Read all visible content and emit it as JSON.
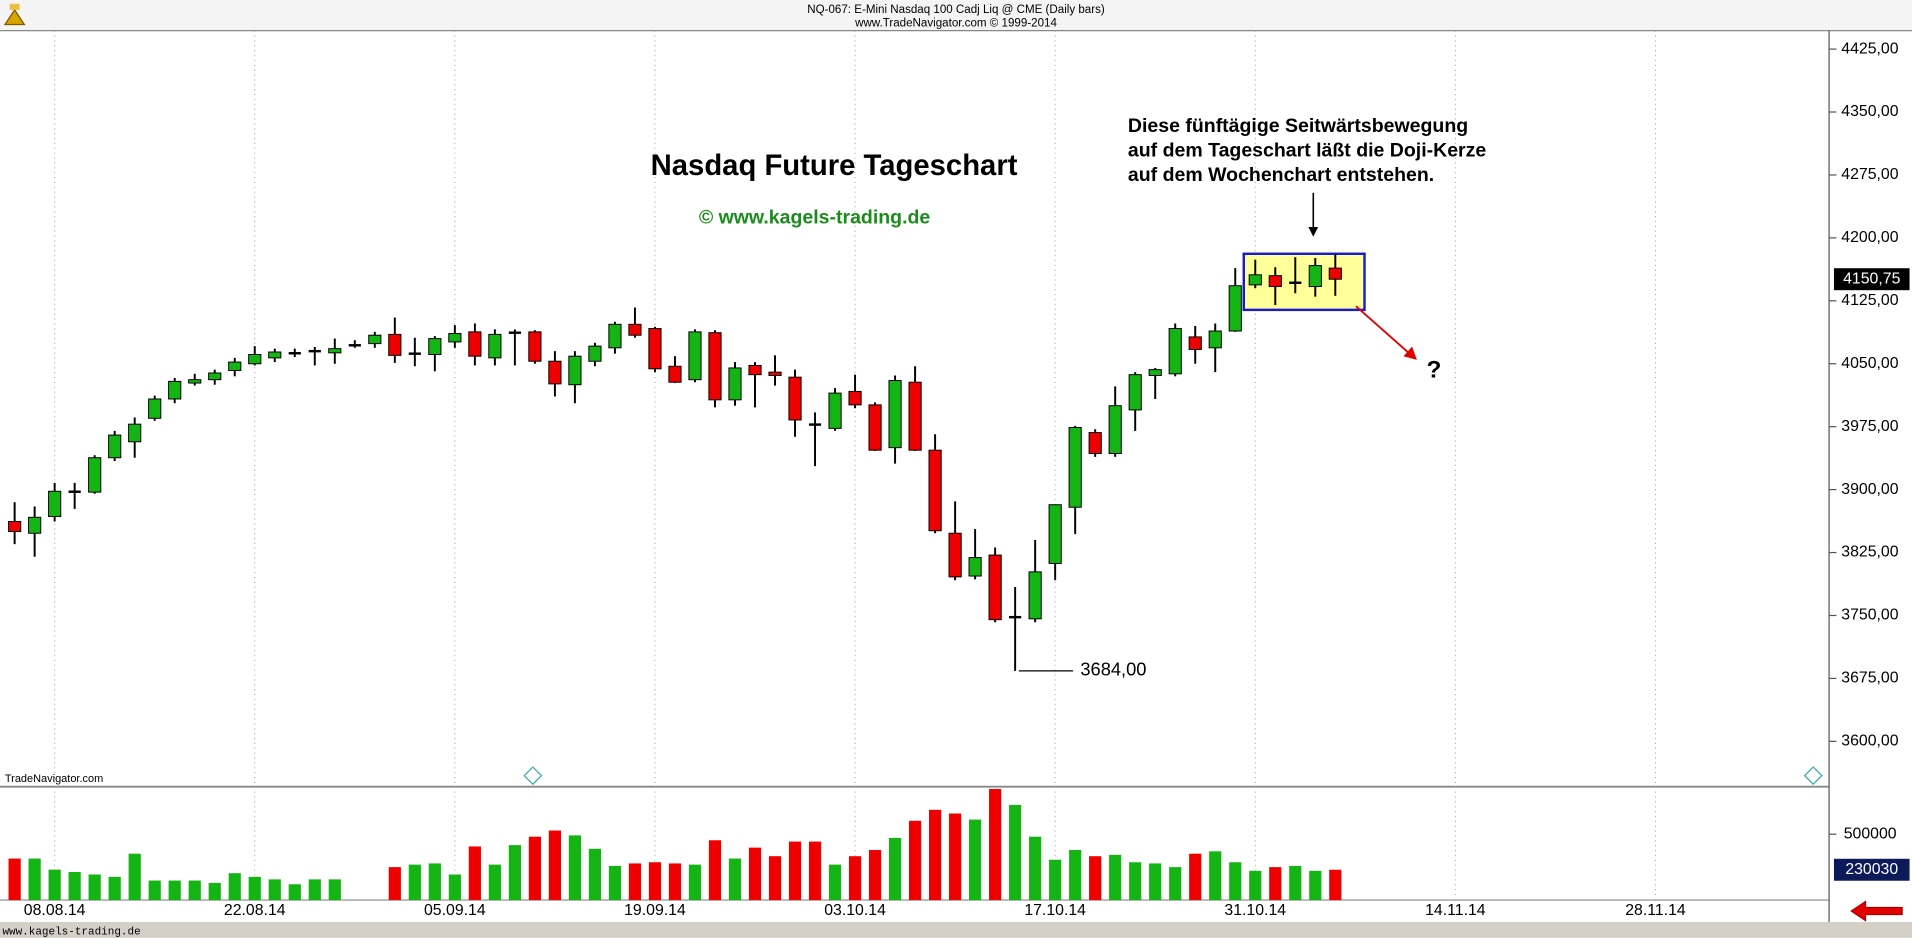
{
  "header": {
    "line1": "NQ-067:  E-Mini Nasdaq 100 Cadj Liq @ CME  (Daily bars)",
    "line2": "www.TradeNavigator.com © 1999-2014"
  },
  "footer": {
    "left": "TradeNavigator.com",
    "bottom": "www.kagels-trading.de"
  },
  "chart_data": {
    "type": "candlestick",
    "title": "Nasdaq Future Tageschart",
    "subtitle": "© www.kagels-trading.de",
    "annotation": [
      "Diese fünftägige Seitwärtsbewegung",
      "auf dem Tageschart läßt die Doji-Kerze",
      "auf dem Wochenchart entstehen."
    ],
    "question": "?",
    "low_label": {
      "value": 3684,
      "label": "3684,00"
    },
    "last_price": {
      "value": 4150.75,
      "label": "4150,75"
    },
    "categories": [
      null,
      null,
      "08.08.14",
      null,
      null,
      null,
      null,
      null,
      null,
      null,
      null,
      null,
      "22.08.14",
      null,
      null,
      null,
      null,
      null,
      null,
      null,
      null,
      null,
      "05.09.14",
      null,
      null,
      null,
      null,
      null,
      null,
      null,
      null,
      null,
      "19.09.14",
      null,
      null,
      null,
      null,
      null,
      null,
      null,
      null,
      null,
      "03.10.14",
      null,
      null,
      null,
      null,
      null,
      null,
      null,
      null,
      null,
      "17.10.14",
      null,
      null,
      null,
      null,
      null,
      null,
      null,
      null,
      null,
      "31.10.14",
      null,
      null,
      null,
      null,
      null,
      null,
      null,
      null,
      null,
      "14.11.14",
      null,
      null,
      null,
      null,
      null,
      null,
      null,
      null,
      null,
      "28.11.14",
      null,
      null,
      null,
      null,
      null,
      null,
      null,
      null
    ],
    "open": [
      3862,
      3848,
      3868,
      3897,
      3897,
      3938,
      3957,
      3985,
      4008,
      4027,
      4031,
      4042,
      4050,
      4057,
      4062,
      4064,
      4063,
      4071,
      4074,
      4085,
      4061,
      4061,
      4076,
      4088,
      4057,
      4086,
      4088,
      4053,
      4025,
      4053,
      4069,
      4097,
      4092,
      4047,
      4031,
      4087,
      4007,
      4048,
      4040,
      4034,
      3978,
      3973,
      4017,
      4001,
      3950,
      4028,
      3947,
      3848,
      3797,
      3822,
      3748,
      3746,
      3812,
      3879,
      3968,
      3943,
      3995,
      4036,
      4038,
      4082,
      4069,
      4089,
      4144,
      4155,
      4146,
      4142,
      4164,
      null,
      null,
      null,
      null,
      null,
      null,
      null,
      null,
      null,
      null,
      null,
      null,
      null,
      null,
      null,
      null,
      null,
      null,
      null,
      null,
      null,
      null,
      null,
      null
    ],
    "high": [
      3885,
      3880,
      3908,
      3908,
      3941,
      3970,
      3986,
      4012,
      4033,
      4038,
      4043,
      4057,
      4071,
      4068,
      4068,
      4070,
      4080,
      4078,
      4088,
      4105,
      4081,
      4083,
      4096,
      4098,
      4091,
      4091,
      4090,
      4065,
      4065,
      4075,
      4100,
      4117,
      4094,
      4059,
      4091,
      4090,
      4052,
      4052,
      4060,
      4043,
      3992,
      4021,
      4037,
      4004,
      4036,
      4047,
      3966,
      3886,
      3853,
      3831,
      3784,
      3840,
      3882,
      3976,
      3972,
      4023,
      4040,
      4045,
      4098,
      4095,
      4098,
      4164,
      4174,
      4165,
      4177,
      4176,
      4180,
      null,
      null,
      null,
      null,
      null,
      null,
      null,
      null,
      null,
      null,
      null,
      null,
      null,
      null,
      null,
      null,
      null,
      null,
      null,
      null,
      null,
      null,
      null,
      null
    ],
    "low": [
      3835,
      3820,
      3862,
      3877,
      3895,
      3934,
      3938,
      3982,
      4003,
      4024,
      4025,
      4035,
      4048,
      4052,
      4058,
      4048,
      4050,
      4069,
      4069,
      4051,
      4047,
      4041,
      4069,
      4048,
      4048,
      4048,
      4050,
      4011,
      4003,
      4047,
      4062,
      4081,
      4040,
      4027,
      4028,
      3998,
      4000,
      3998,
      4024,
      3963,
      3928,
      3970,
      3997,
      3946,
      3931,
      3946,
      3848,
      3792,
      3793,
      3742,
      3684,
      3742,
      3792,
      3847,
      3939,
      3939,
      3970,
      4008,
      4035,
      4050,
      4040,
      4088,
      4140,
      4120,
      4134,
      4130,
      4131,
      null,
      null,
      null,
      null,
      null,
      null,
      null,
      null,
      null,
      null,
      null,
      null,
      null,
      null,
      null,
      null,
      null,
      null,
      null,
      null,
      null,
      null,
      null,
      null
    ],
    "close": [
      3850,
      3867,
      3898,
      3898,
      3938,
      3965,
      3978,
      4008,
      4029,
      4031,
      4039,
      4052,
      4061,
      4064,
      4063,
      4066,
      4068,
      4073,
      4084,
      4060,
      4063,
      4080,
      4086,
      4059,
      4085,
      4088,
      4053,
      4026,
      4059,
      4071,
      4097,
      4084,
      4044,
      4028,
      4088,
      4007,
      4045,
      4037,
      4036,
      3983,
      3977,
      4015,
      4001,
      3947,
      4030,
      3947,
      3851,
      3796,
      3819,
      3745,
      3748,
      3802,
      3882,
      3974,
      3943,
      4000,
      4037,
      4043,
      4092,
      4067,
      4089,
      4143,
      4156,
      4142,
      4147,
      4167,
      4150.75,
      null,
      null,
      null,
      null,
      null,
      null,
      null,
      null,
      null,
      null,
      null,
      null,
      null,
      null,
      null,
      null,
      null,
      null,
      null,
      null,
      null,
      null,
      null,
      null
    ],
    "volume": [
      315000,
      315000,
      231000,
      213000,
      194000,
      176000,
      352000,
      148000,
      148000,
      148000,
      130000,
      204000,
      176000,
      157000,
      120000,
      157000,
      157000,
      null,
      null,
      250000,
      269000,
      278000,
      194000,
      407000,
      269000,
      417000,
      481000,
      528000,
      491000,
      389000,
      259000,
      278000,
      287000,
      278000,
      269000,
      454000,
      315000,
      398000,
      333000,
      444000,
      444000,
      269000,
      333000,
      380000,
      472000,
      602000,
      685000,
      657000,
      611000,
      843000,
      722000,
      481000,
      306000,
      380000,
      333000,
      343000,
      287000,
      278000,
      250000,
      352000,
      370000,
      287000,
      222000,
      250000,
      259000,
      222000,
      230030,
      null,
      null,
      null,
      null,
      null,
      null,
      null,
      null,
      null,
      null,
      null,
      null,
      null,
      null,
      null,
      null,
      null,
      null,
      null,
      null,
      null,
      null,
      null,
      null
    ],
    "up_color": "#14b414",
    "down_color": "#ee0000",
    "ylim": [
      3546,
      4447
    ],
    "yticks": [
      {
        "value": 3600,
        "label": "3600,00"
      },
      {
        "value": 3675,
        "label": "3675,00"
      },
      {
        "value": 3750,
        "label": "3750,00"
      },
      {
        "value": 3825,
        "label": "3825,00"
      },
      {
        "value": 3900,
        "label": "3900,00"
      },
      {
        "value": 3975,
        "label": "3975,00"
      },
      {
        "value": 4050,
        "label": "4050,00"
      },
      {
        "value": 4125,
        "label": "4125,00"
      },
      {
        "value": 4200,
        "label": "4200,00"
      },
      {
        "value": 4275,
        "label": "4275,00"
      },
      {
        "value": 4350,
        "label": "4350,00"
      },
      {
        "value": 4425,
        "label": "4425,00"
      }
    ],
    "volume_ylim": [
      0,
      861000
    ],
    "volume_yticks": [
      500000
    ],
    "grid": true
  }
}
